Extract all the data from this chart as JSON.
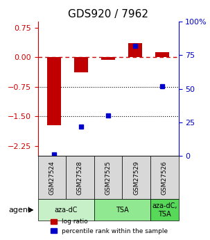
{
  "title": "GDS920 / 7962",
  "samples": [
    "GSM27524",
    "GSM27528",
    "GSM27525",
    "GSM27529",
    "GSM27526"
  ],
  "log_ratios": [
    -1.72,
    -0.38,
    -0.07,
    0.35,
    0.12
  ],
  "percentile_ranks": [
    1,
    22,
    30,
    82,
    52
  ],
  "agent_groups": [
    {
      "label": "aza-dC",
      "samples": [
        "GSM27524",
        "GSM27528"
      ],
      "color": "#c8f0c8"
    },
    {
      "label": "TSA",
      "samples": [
        "GSM27525",
        "GSM27529"
      ],
      "color": "#90e890"
    },
    {
      "label": "aza-dC,\nTSA",
      "samples": [
        "GSM27526"
      ],
      "color": "#58d858"
    }
  ],
  "bar_color": "#c00000",
  "dot_color": "#0000cc",
  "ylim_left": [
    -2.5,
    0.9
  ],
  "ylim_right": [
    0,
    100
  ],
  "yticks_left": [
    -2.25,
    -1.5,
    -0.75,
    0,
    0.75
  ],
  "yticks_right": [
    0,
    25,
    50,
    75,
    100
  ],
  "hlines": [
    -0.75,
    -1.5
  ],
  "dashed_line": 0.0,
  "legend_labels": [
    "log ratio",
    "percentile rank within the sample"
  ],
  "bar_width": 0.5,
  "background_color": "#ffffff"
}
